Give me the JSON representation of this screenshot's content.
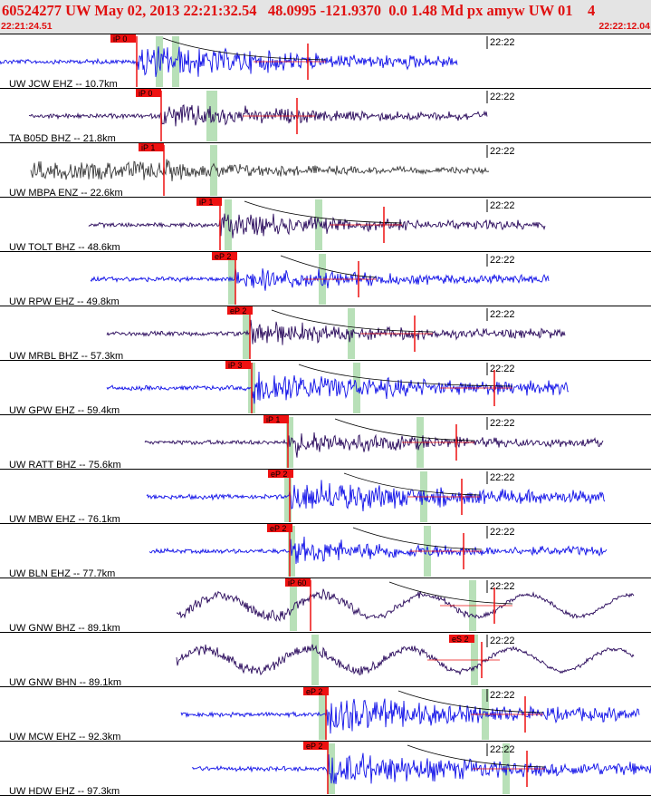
{
  "header": {
    "title": "60524277 UW May 02, 2013 22:21:32.54   48.0995 -121.9370  0.0 1.48 Md px amyw UW 01    4",
    "time_start": "22:21:24.51",
    "time_end": "22:22:12.04"
  },
  "minute_mark_label": "22:22",
  "colors": {
    "title": "#e01010",
    "blue_trace": "#1010e8",
    "purple_trace": "#2a0a5c",
    "gray_trace": "#3c3c3c",
    "pick_marker": "#ee1111",
    "phase_window": "#b8e0b8",
    "curve": "#000000"
  },
  "traces": [
    {
      "label": "UW JCW EHZ -- 10.7km",
      "pick": "iP 0",
      "color": "blue",
      "amp": "high"
    },
    {
      "label": "TA B05D BHZ -- 21.8km",
      "pick": "iP 0",
      "color": "purple",
      "amp": "med"
    },
    {
      "label": "UW MBPA ENZ -- 22.6km",
      "pick": "iP 1",
      "color": "gray",
      "amp": "noise"
    },
    {
      "label": "UW TOLT BHZ -- 48.6km",
      "pick": "iP 1",
      "color": "purple",
      "amp": "med"
    },
    {
      "label": "UW RPW EHZ -- 49.8km",
      "pick": "eP 2",
      "color": "blue",
      "amp": "med"
    },
    {
      "label": "UW MRBL BHZ -- 57.3km",
      "pick": "eP 2",
      "color": "purple",
      "amp": "med"
    },
    {
      "label": "UW GPW EHZ -- 59.4km",
      "pick": "iP 3",
      "color": "blue",
      "amp": "high"
    },
    {
      "label": "UW RATT BHZ -- 75.6km",
      "pick": "iP 1",
      "color": "purple",
      "amp": "med"
    },
    {
      "label": "UW MBW EHZ -- 76.1km",
      "pick": "eP 2",
      "color": "blue",
      "amp": "high"
    },
    {
      "label": "UW BLN EHZ -- 77.7km",
      "pick": "eP 2",
      "color": "blue",
      "amp": "med"
    },
    {
      "label": "UW GNW BHZ -- 89.1km",
      "pick": "iP 60",
      "color": "purple",
      "amp": "long"
    },
    {
      "label": "UW GNW BHN -- 89.1km",
      "pick": "eS 2",
      "color": "purple",
      "amp": "long"
    },
    {
      "label": "UW MCW EHZ -- 92.3km",
      "pick": "eP 2",
      "color": "blue",
      "amp": "high"
    },
    {
      "label": "UW HDW EHZ -- 97.3km",
      "pick": "eP 2",
      "color": "blue",
      "amp": "high"
    }
  ]
}
